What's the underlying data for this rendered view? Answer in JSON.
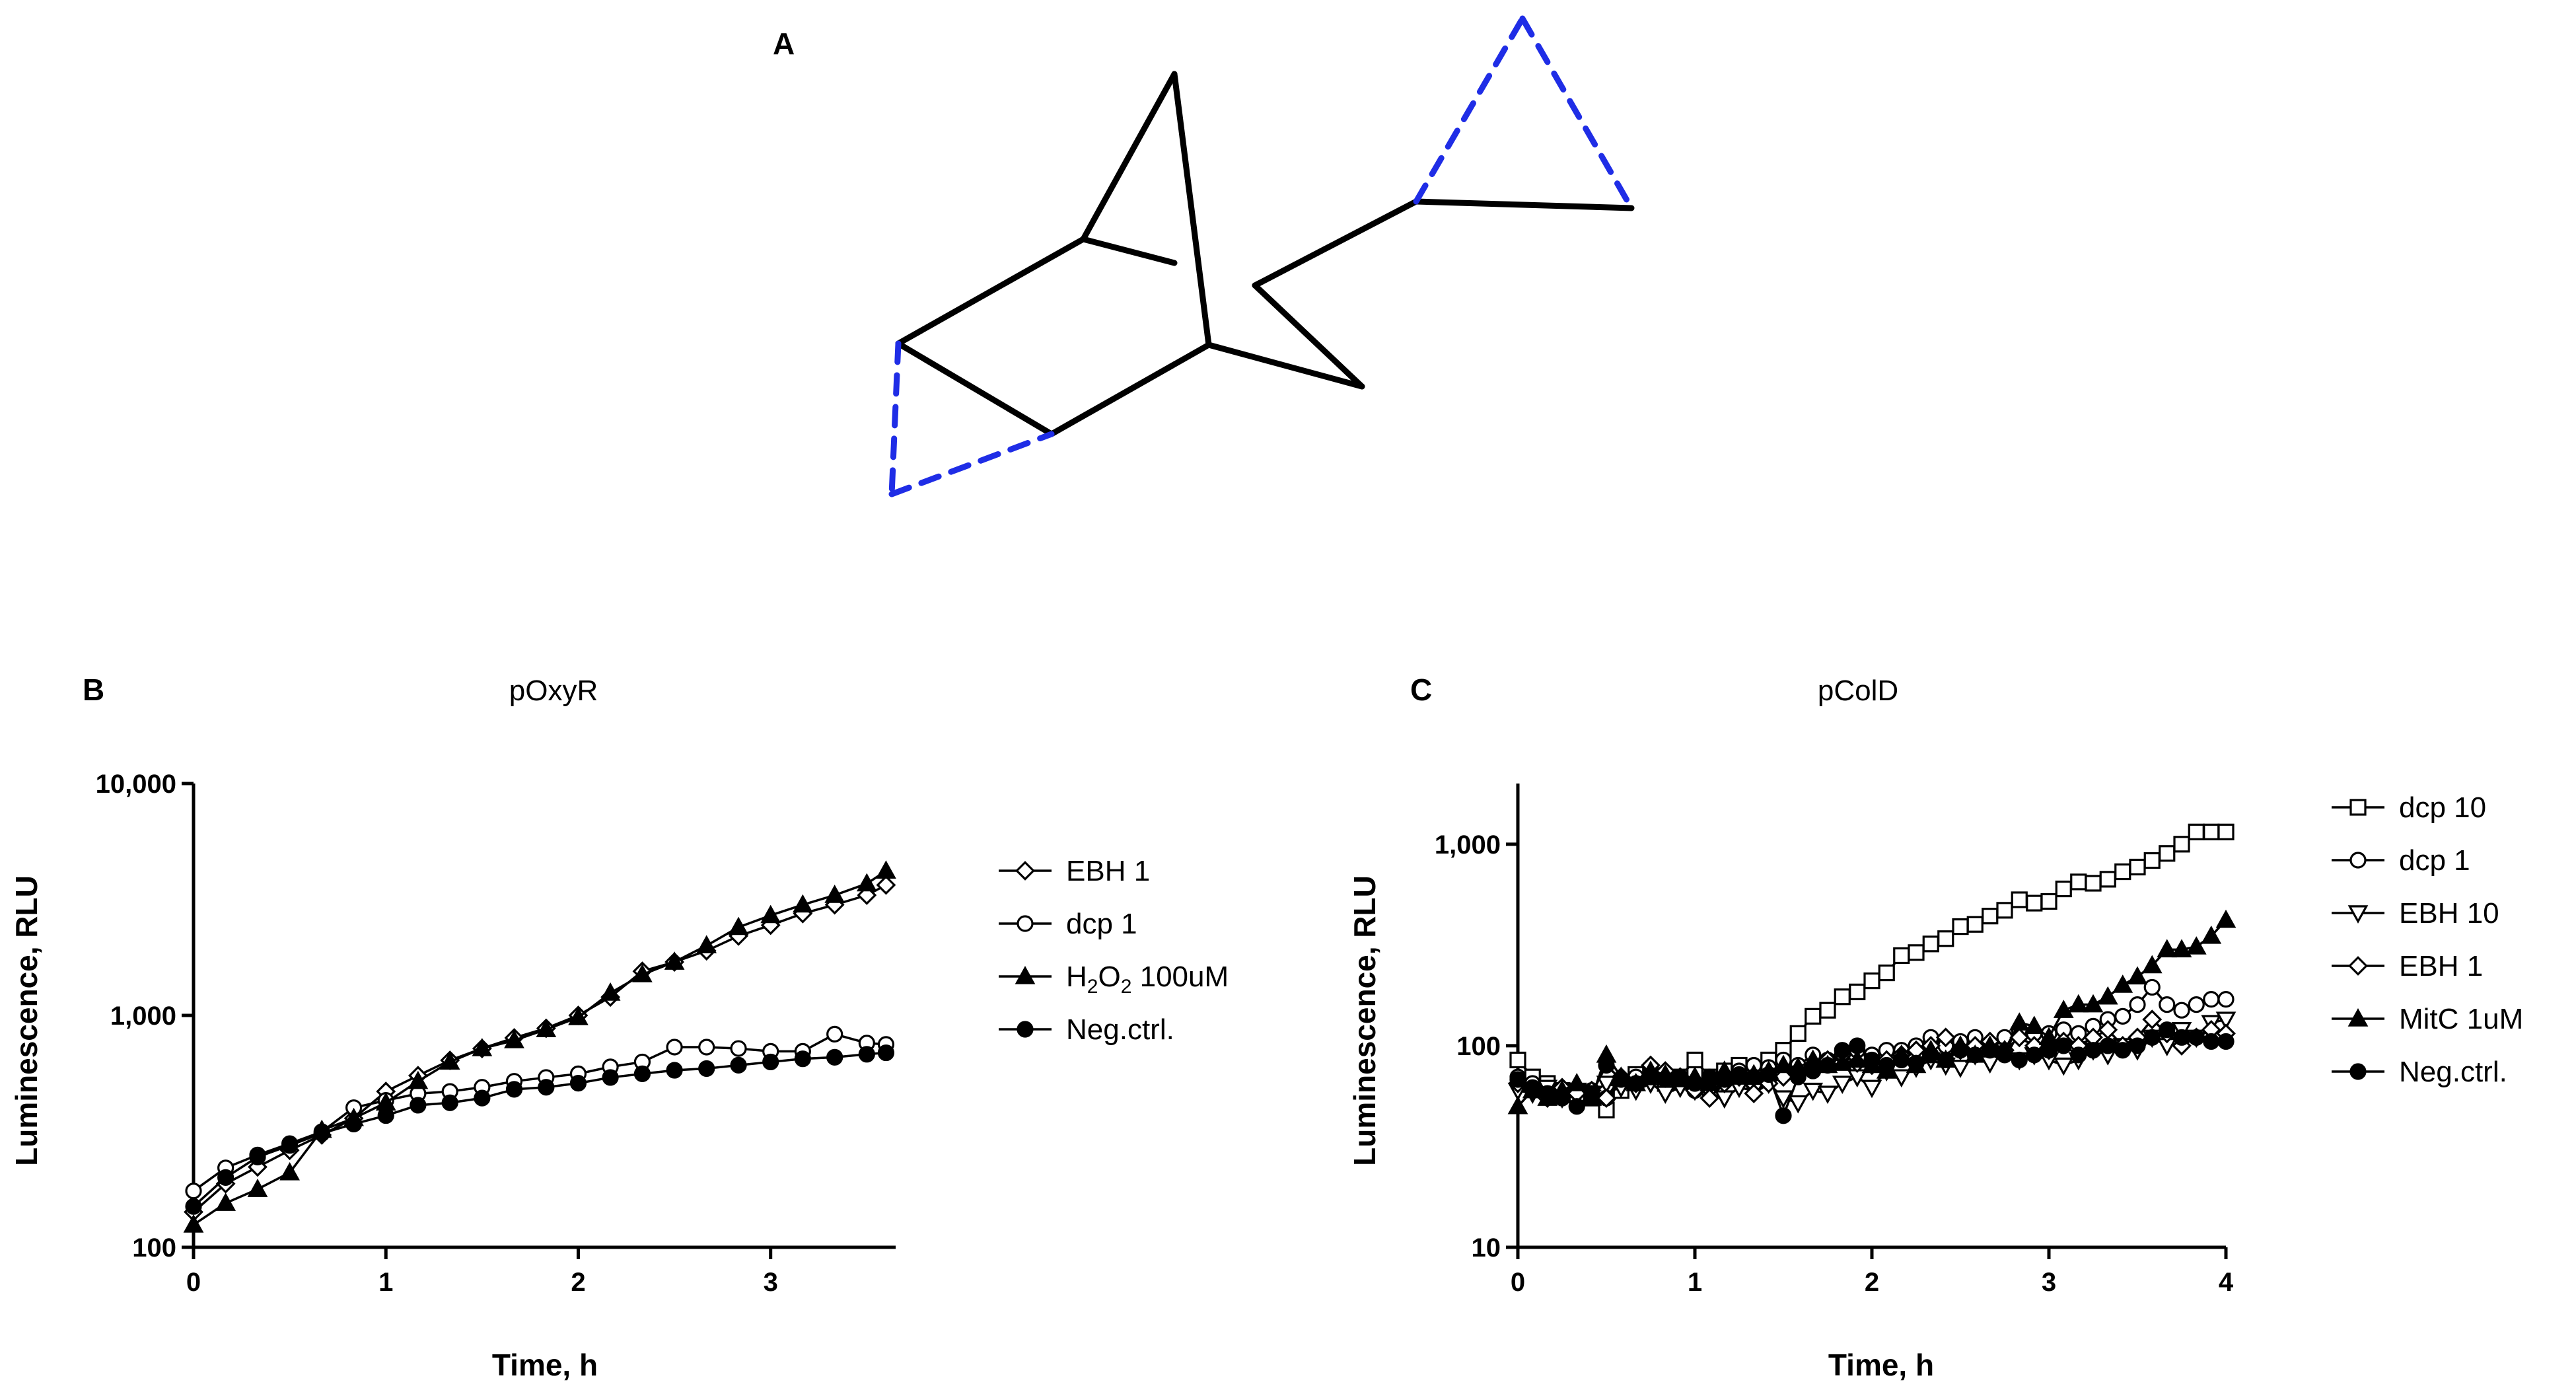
{
  "panels": {
    "A": {
      "label": "A"
    },
    "B": {
      "label": "B"
    },
    "C": {
      "label": "C"
    }
  },
  "colors": {
    "line": "#000000",
    "dashed": "#1f2de6"
  },
  "chart_data": [
    {
      "id": "B",
      "type": "line",
      "title": "pOxyR",
      "xlabel": "Time, h",
      "ylabel": "Luminescence, RLU",
      "yscale": "log",
      "xlim": [
        0,
        3.65
      ],
      "ylim": [
        100,
        10000
      ],
      "xticks": [
        0,
        1,
        2,
        3
      ],
      "xtick_labels": [
        "0",
        "1",
        "2",
        "3"
      ],
      "yticks": [
        100,
        1000,
        10000
      ],
      "ytick_labels": [
        "100",
        "1,000",
        "10,000"
      ],
      "x": [
        0,
        0.167,
        0.333,
        0.5,
        0.667,
        0.833,
        1.0,
        1.167,
        1.333,
        1.5,
        1.667,
        1.833,
        2.0,
        2.167,
        2.333,
        2.5,
        2.667,
        2.833,
        3.0,
        3.167,
        3.333,
        3.5,
        3.6
      ],
      "series": [
        {
          "name": "EBH 1",
          "marker": "diamond-open",
          "values": [
            142,
            188,
            222,
            262,
            305,
            360,
            470,
            550,
            640,
            720,
            800,
            880,
            1000,
            1200,
            1550,
            1700,
            1900,
            2200,
            2450,
            2750,
            3000,
            3300,
            3650
          ]
        },
        {
          "name": "dcp 1",
          "marker": "circle-open",
          "values": [
            175,
            220,
            250,
            280,
            315,
            400,
            430,
            460,
            470,
            490,
            520,
            540,
            560,
            600,
            630,
            730,
            730,
            720,
            700,
            700,
            830,
            760,
            750
          ]
        },
        {
          "name": "H₂O₂ 100uM",
          "marker": "triangle-filled",
          "values": [
            125,
            155,
            178,
            210,
            320,
            360,
            420,
            520,
            630,
            720,
            780,
            870,
            980,
            1250,
            1500,
            1700,
            2000,
            2400,
            2700,
            3000,
            3300,
            3700,
            4200
          ]
        },
        {
          "name": "Neg.ctrl.",
          "marker": "circle-filled",
          "values": [
            150,
            200,
            245,
            275,
            310,
            340,
            370,
            410,
            420,
            440,
            480,
            490,
            510,
            540,
            560,
            580,
            590,
            610,
            630,
            650,
            660,
            680,
            690
          ]
        }
      ],
      "legend": "right",
      "legend_labels": {
        "EBH 1": "EBH 1",
        "dcp 1": "dcp 1",
        "H2O2": {
          "prefix": "H",
          "sub1": "2",
          "mid": "O",
          "sub2": "2",
          "suffix": " 100uM"
        },
        "Neg.ctrl.": "Neg.ctrl."
      }
    },
    {
      "id": "C",
      "type": "line",
      "title": "pColD",
      "xlabel": "Time, h",
      "ylabel": "Luminescence, RLU",
      "yscale": "log",
      "xlim": [
        0,
        4
      ],
      "ylim": [
        10,
        2000
      ],
      "xticks": [
        0,
        1,
        2,
        3,
        4
      ],
      "xtick_labels": [
        "0",
        "1",
        "2",
        "3",
        "4"
      ],
      "yticks": [
        10,
        100,
        1000
      ],
      "ytick_labels": [
        "10",
        "100",
        "1,000"
      ],
      "x": [
        0,
        0.083,
        0.167,
        0.25,
        0.333,
        0.417,
        0.5,
        0.583,
        0.667,
        0.75,
        0.833,
        0.917,
        1.0,
        1.083,
        1.167,
        1.25,
        1.333,
        1.417,
        1.5,
        1.583,
        1.667,
        1.75,
        1.833,
        1.917,
        2.0,
        2.083,
        2.167,
        2.25,
        2.333,
        2.417,
        2.5,
        2.583,
        2.667,
        2.75,
        2.833,
        2.917,
        3.0,
        3.083,
        3.167,
        3.25,
        3.333,
        3.417,
        3.5,
        3.583,
        3.667,
        3.75,
        3.833,
        3.917,
        4.0
      ],
      "series": [
        {
          "name": "dcp 10",
          "marker": "square-open",
          "values": [
            85,
            70,
            65,
            60,
            58,
            55,
            48,
            60,
            72,
            70,
            65,
            70,
            85,
            70,
            75,
            80,
            70,
            85,
            95,
            115,
            140,
            150,
            175,
            185,
            210,
            230,
            280,
            290,
            320,
            340,
            390,
            400,
            440,
            470,
            530,
            510,
            520,
            600,
            650,
            640,
            670,
            730,
            770,
            830,
            900,
            1000,
            1150,
            1150,
            1150
          ]
        },
        {
          "name": "dcp 1",
          "marker": "circle-open",
          "values": [
            70,
            65,
            60,
            58,
            55,
            60,
            55,
            65,
            70,
            72,
            70,
            65,
            60,
            70,
            70,
            75,
            80,
            78,
            85,
            80,
            90,
            85,
            90,
            95,
            90,
            95,
            95,
            100,
            110,
            100,
            105,
            110,
            100,
            110,
            120,
            115,
            115,
            120,
            115,
            125,
            135,
            140,
            160,
            195,
            160,
            150,
            160,
            170,
            170
          ]
        },
        {
          "name": "EBH 10",
          "marker": "triangle-down-open",
          "values": [
            60,
            58,
            62,
            55,
            60,
            58,
            65,
            62,
            60,
            65,
            58,
            62,
            60,
            58,
            55,
            62,
            60,
            65,
            55,
            52,
            60,
            58,
            65,
            70,
            62,
            75,
            70,
            78,
            85,
            80,
            78,
            90,
            82,
            95,
            85,
            90,
            85,
            80,
            85,
            95,
            90,
            100,
            95,
            110,
            100,
            120,
            110,
            130,
            135
          ]
        },
        {
          "name": "EBH 1",
          "marker": "diamond-open",
          "values": [
            65,
            60,
            55,
            62,
            58,
            60,
            55,
            70,
            65,
            80,
            75,
            70,
            60,
            55,
            65,
            70,
            58,
            65,
            70,
            75,
            80,
            85,
            90,
            82,
            80,
            85,
            90,
            95,
            100,
            110,
            95,
            100,
            105,
            95,
            110,
            100,
            95,
            105,
            100,
            110,
            120,
            100,
            110,
            135,
            115,
            100,
            110,
            120,
            115
          ]
        },
        {
          "name": "MitC 1uM",
          "marker": "triangle-filled",
          "values": [
            50,
            60,
            55,
            60,
            65,
            55,
            90,
            70,
            65,
            75,
            72,
            68,
            70,
            65,
            75,
            70,
            72,
            75,
            80,
            78,
            85,
            80,
            82,
            85,
            80,
            75,
            90,
            80,
            95,
            85,
            100,
            90,
            100,
            95,
            130,
            125,
            110,
            150,
            160,
            160,
            175,
            200,
            220,
            250,
            300,
            300,
            310,
            350,
            420
          ]
        },
        {
          "name": "Neg.ctrl.",
          "marker": "circle-filled",
          "values": [
            68,
            62,
            58,
            55,
            50,
            58,
            80,
            68,
            65,
            70,
            68,
            70,
            65,
            70,
            68,
            72,
            70,
            72,
            45,
            70,
            75,
            80,
            95,
            100,
            85,
            80,
            85,
            82,
            90,
            85,
            95,
            90,
            95,
            90,
            85,
            90,
            95,
            100,
            90,
            95,
            100,
            95,
            100,
            110,
            120,
            110,
            110,
            105,
            105
          ]
        }
      ],
      "legend": "right"
    }
  ]
}
